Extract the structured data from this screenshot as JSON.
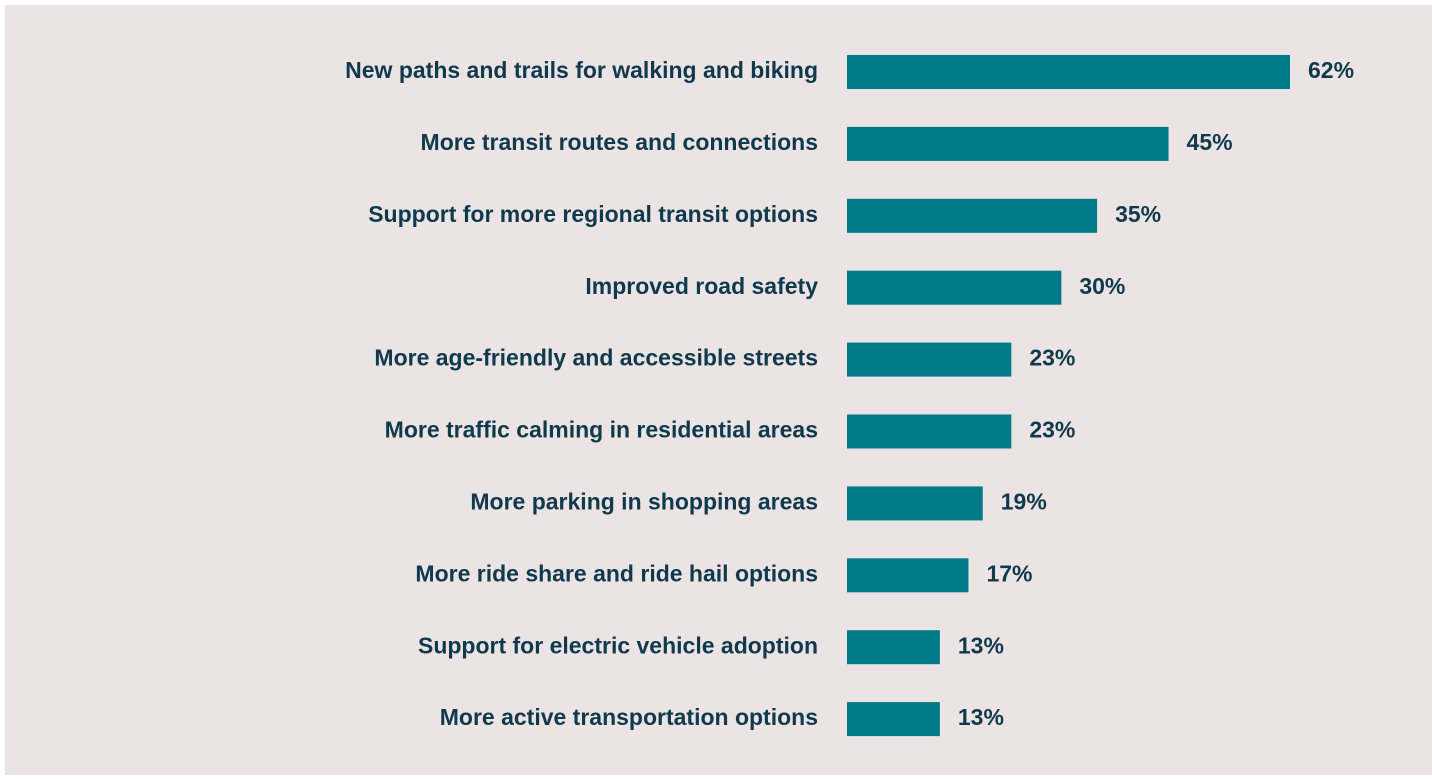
{
  "chart_data": {
    "type": "bar",
    "orientation": "horizontal",
    "color": "#007a87",
    "categories": [
      "New paths and trails for walking and biking",
      "More transit routes and connections",
      "Support for more regional transit options",
      "Improved road safety",
      "More age-friendly and accessible streets",
      "More traffic calming in residential areas",
      "More parking in shopping areas",
      "More ride share and ride hail options",
      "Support for electric vehicle adoption",
      "More active transportation options"
    ],
    "values": [
      62,
      45,
      35,
      30,
      23,
      23,
      19,
      17,
      13,
      13
    ],
    "value_labels": [
      "62%",
      "45%",
      "35%",
      "30%",
      "23%",
      "23%",
      "19%",
      "17%",
      "13%",
      "13%"
    ]
  }
}
